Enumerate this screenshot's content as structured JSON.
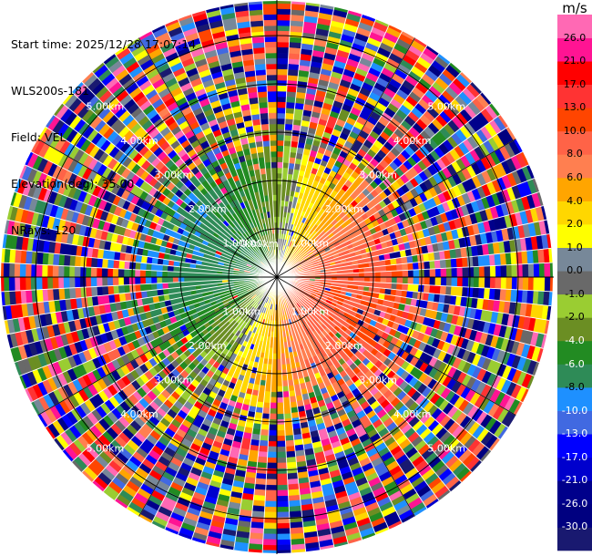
{
  "info": {
    "start_time": "Start time: 2025/12/28 17:07:14",
    "site": "WLS200s-181",
    "field": "Field: VEL",
    "elevation": "Elevation(deg): 35.00",
    "nrays": "NRays: 120"
  },
  "colorbar": {
    "unit": "m/s",
    "levels": [
      "-30.0",
      "-26.0",
      "-21.0",
      "-17.0",
      "-13.0",
      "-10.0",
      "-8.0",
      "-6.0",
      "-4.0",
      "-2.0",
      "-1.0",
      "0.0",
      "1.0",
      "2.0",
      "4.0",
      "6.0",
      "8.0",
      "10.0",
      "13.0",
      "17.0",
      "21.0",
      "26.0"
    ],
    "colors": [
      "#191970",
      "#000080",
      "#00008b",
      "#0000cd",
      "#0000ff",
      "#4169e1",
      "#1e90ff",
      "#2e8b57",
      "#228b22",
      "#6b8e23",
      "#9acd32",
      "#696969",
      "#778899",
      "#ffff00",
      "#ffd700",
      "#ffa500",
      "#ff7f50",
      "#ff6347",
      "#ff4500",
      "#ff3333",
      "#ff0000",
      "#ff1493",
      "#ff69b4"
    ]
  },
  "chart_data": {
    "type": "ppi",
    "field": "VEL",
    "units": "m/s",
    "nrays": 120,
    "range_ring_labels": [
      "1.00km",
      "2.00km",
      "3.00km",
      "4.00km",
      "5.00km"
    ],
    "center_label": "0.00km",
    "max_range_km": 5.5,
    "pattern": "Near-field radial velocity: negative (toward, blue/green) on the west/north side, positive (away, orange/red) on the east/south side, with noisy random values beyond ~2 km."
  }
}
